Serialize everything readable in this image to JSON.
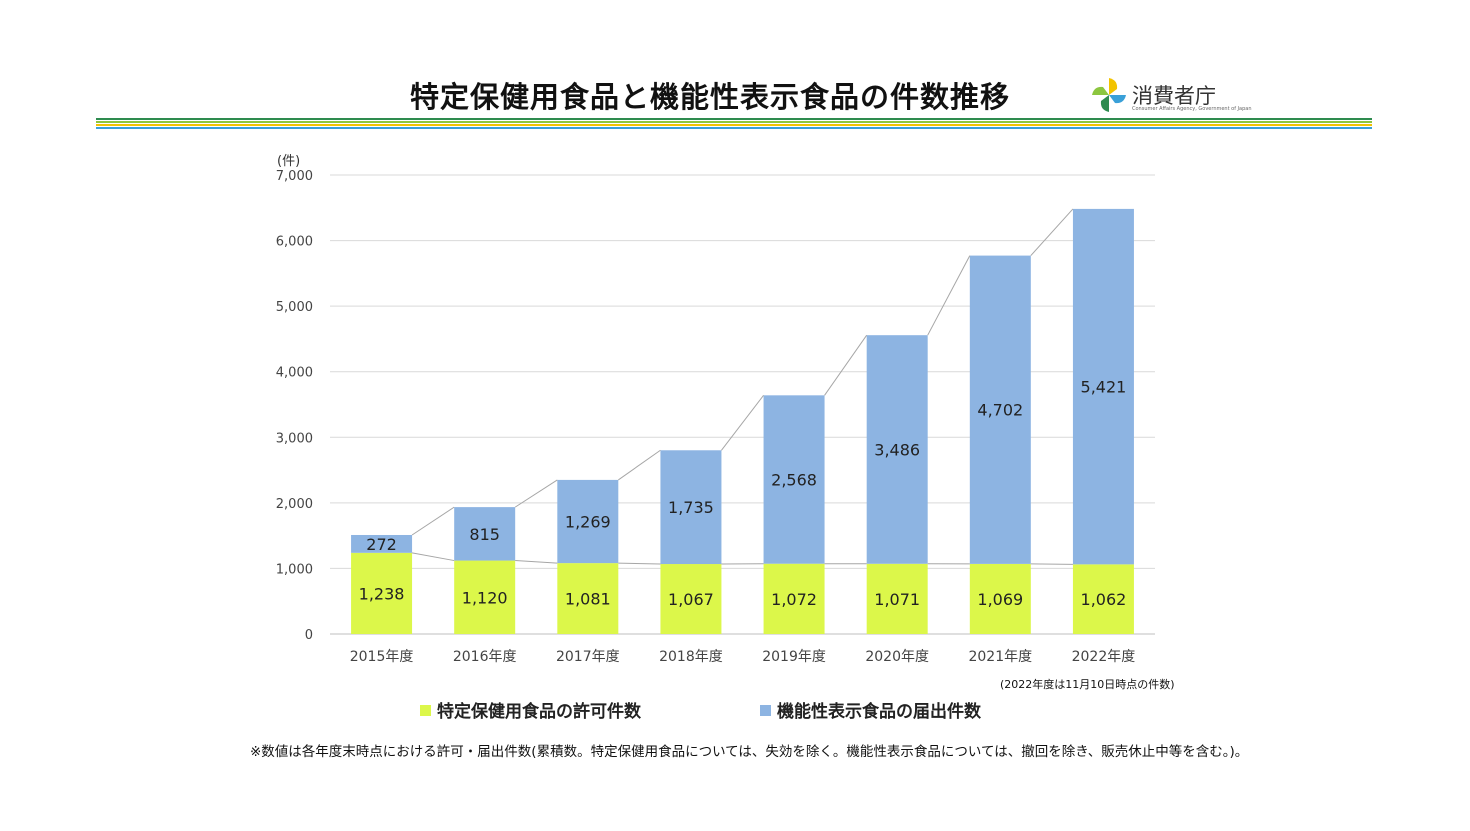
{
  "header": {
    "title": "特定保健用食品と機能性表示食品の件数推移",
    "logo_text": "消費者庁",
    "logo_subtext": "Consumer Affairs Agency, Government of Japan",
    "logo_icon": "caa-pinwheel-logo",
    "stripe_colors": [
      "#2e8b4f",
      "#8cc63f",
      "#f2c300",
      "#3aa0d8"
    ]
  },
  "chart_data": {
    "type": "bar",
    "stacked": true,
    "title": "",
    "ylabel": "(件)",
    "xlabel": "",
    "ylim": [
      0,
      7000
    ],
    "yticks": [
      "0",
      "1,000",
      "2,000",
      "3,000",
      "4,000",
      "5,000",
      "6,000",
      "7,000"
    ],
    "grid": true,
    "categories": [
      "2015年度",
      "2016年度",
      "2017年度",
      "2018年度",
      "2019年度",
      "2020年度",
      "2021年度",
      "2022年度"
    ],
    "series": [
      {
        "name": "特定保健用食品の許可件数",
        "color": "#dcf74a",
        "values": [
          1238,
          1120,
          1081,
          1067,
          1072,
          1071,
          1069,
          1062
        ],
        "labels": [
          "1,238",
          "1,120",
          "1,081",
          "1,067",
          "1,072",
          "1,071",
          "1,069",
          "1,062"
        ]
      },
      {
        "name": "機能性表示食品の届出件数",
        "color": "#8db4e2",
        "values": [
          272,
          815,
          1269,
          1735,
          2568,
          3486,
          4702,
          5421
        ],
        "labels": [
          "272",
          "815",
          "1,269",
          "1,735",
          "2,568",
          "3,486",
          "4,702",
          "5,421"
        ]
      }
    ],
    "legend_position": "bottom",
    "annotation": "(2022年度は11月10日時点の件数)"
  },
  "footnote": "※数値は各年度末時点における許可・届出件数(累積数。特定保健用食品については、失効を除く。機能性表示食品については、撤回を除き、販売休止中等を含む。)。"
}
